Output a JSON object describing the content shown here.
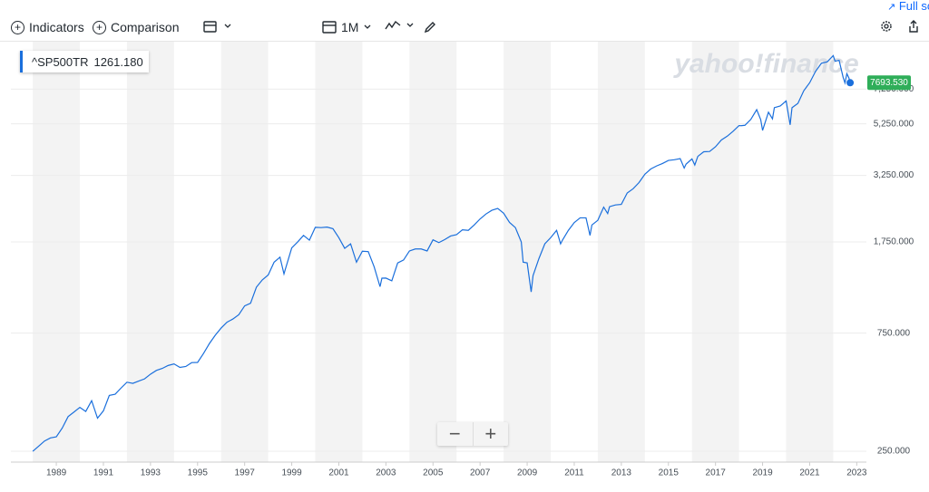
{
  "toolbar": {
    "indicators": "Indicators",
    "comparison": "Comparison",
    "interval": "1M",
    "full_screen": "Full screen"
  },
  "legend": {
    "symbol": "^SP500TR",
    "value": "1261.180"
  },
  "watermark": "yahoo!finance",
  "chart_data": {
    "type": "line",
    "color": "#1a6fdc",
    "log_scale": true,
    "grid": true,
    "xlim": [
      1987.07,
      2023.41
    ],
    "xticks": [
      1989,
      1991,
      1993,
      1995,
      1997,
      1999,
      2001,
      2003,
      2005,
      2007,
      2009,
      2011,
      2013,
      2015,
      2017,
      2019,
      2021,
      2023
    ],
    "ylim": [
      226,
      11270
    ],
    "yticks": [
      {
        "value": 250,
        "label": "250.000"
      },
      {
        "value": 750,
        "label": "750.000"
      },
      {
        "value": 1750,
        "label": "1,750.000"
      },
      {
        "value": 3250,
        "label": "3,250.000"
      },
      {
        "value": 5250,
        "label": "5,250.000"
      },
      {
        "value": 7250,
        "label": "7,250.000"
      }
    ],
    "last_price": {
      "value": 7693.53,
      "label": "7693.530"
    },
    "x": [
      1988.0,
      1988.25,
      1988.5,
      1988.75,
      1989.0,
      1989.25,
      1989.5,
      1989.75,
      1990.0,
      1990.25,
      1990.5,
      1990.75,
      1991.0,
      1991.25,
      1991.5,
      1991.75,
      1992.0,
      1992.25,
      1992.5,
      1992.75,
      1993.0,
      1993.25,
      1993.5,
      1993.75,
      1994.0,
      1994.25,
      1994.5,
      1994.75,
      1995.0,
      1995.25,
      1995.5,
      1995.75,
      1996.0,
      1996.25,
      1996.5,
      1996.75,
      1997.0,
      1997.25,
      1997.5,
      1997.75,
      1998.0,
      1998.25,
      1998.5,
      1998.67,
      1998.75,
      1999.0,
      1999.25,
      1999.5,
      1999.75,
      2000.0,
      2000.25,
      2000.5,
      2000.75,
      2001.0,
      2001.25,
      2001.5,
      2001.75,
      2002.0,
      2002.25,
      2002.5,
      2002.75,
      2002.83,
      2003.0,
      2003.25,
      2003.5,
      2003.75,
      2004.0,
      2004.25,
      2004.5,
      2004.75,
      2005.0,
      2005.25,
      2005.5,
      2005.75,
      2006.0,
      2006.25,
      2006.5,
      2006.75,
      2007.0,
      2007.25,
      2007.5,
      2007.75,
      2008.0,
      2008.25,
      2008.5,
      2008.75,
      2008.83,
      2009.0,
      2009.17,
      2009.25,
      2009.5,
      2009.75,
      2010.0,
      2010.25,
      2010.42,
      2010.5,
      2010.75,
      2011.0,
      2011.25,
      2011.5,
      2011.67,
      2011.75,
      2012.0,
      2012.25,
      2012.42,
      2012.5,
      2012.75,
      2013.0,
      2013.25,
      2013.5,
      2013.75,
      2014.0,
      2014.25,
      2014.5,
      2014.75,
      2015.0,
      2015.25,
      2015.5,
      2015.67,
      2015.75,
      2016.0,
      2016.12,
      2016.25,
      2016.5,
      2016.75,
      2017.0,
      2017.25,
      2017.5,
      2017.75,
      2018.0,
      2018.08,
      2018.25,
      2018.5,
      2018.75,
      2018.92,
      2019.0,
      2019.25,
      2019.42,
      2019.5,
      2019.75,
      2020.0,
      2020.17,
      2020.25,
      2020.5,
      2020.75,
      2021.0,
      2021.25,
      2021.5,
      2021.75,
      2022.0,
      2022.08,
      2022.25,
      2022.42,
      2022.5,
      2022.58,
      2022.67,
      2022.72
    ],
    "values": [
      250,
      262,
      275,
      283,
      286,
      310,
      345,
      360,
      376,
      362,
      400,
      340,
      364,
      420,
      425,
      450,
      475,
      470,
      480,
      490,
      512,
      530,
      540,
      555,
      563,
      545,
      550,
      570,
      571,
      620,
      680,
      735,
      786,
      830,
      855,
      890,
      966,
      990,
      1150,
      1230,
      1288,
      1450,
      1520,
      1300,
      1380,
      1657,
      1750,
      1860,
      1780,
      2005,
      2000,
      2010,
      1980,
      1822,
      1650,
      1720,
      1450,
      1606,
      1600,
      1390,
      1155,
      1250,
      1251,
      1220,
      1440,
      1480,
      1610,
      1640,
      1640,
      1610,
      1785,
      1740,
      1790,
      1850,
      1873,
      1960,
      1950,
      2050,
      2168,
      2270,
      2350,
      2390,
      2287,
      2100,
      2000,
      1750,
      1450,
      1441,
      1100,
      1280,
      1500,
      1720,
      1822,
      1950,
      1720,
      1780,
      1950,
      2096,
      2190,
      2190,
      1860,
      2050,
      2140,
      2420,
      2280,
      2430,
      2470,
      2483,
      2760,
      2870,
      3040,
      3287,
      3450,
      3550,
      3630,
      3736,
      3760,
      3800,
      3480,
      3610,
      3788,
      3580,
      3880,
      4050,
      4060,
      4241,
      4520,
      4680,
      4900,
      5167,
      5160,
      5180,
      5470,
      5990,
      5460,
      4940,
      5850,
      5500,
      6100,
      6200,
      6496,
      5200,
      6100,
      6350,
      7140,
      7692,
      8550,
      9220,
      9350,
      9900,
      9400,
      9480,
      8100,
      7680,
      8370,
      8030,
      7693.53
    ]
  }
}
